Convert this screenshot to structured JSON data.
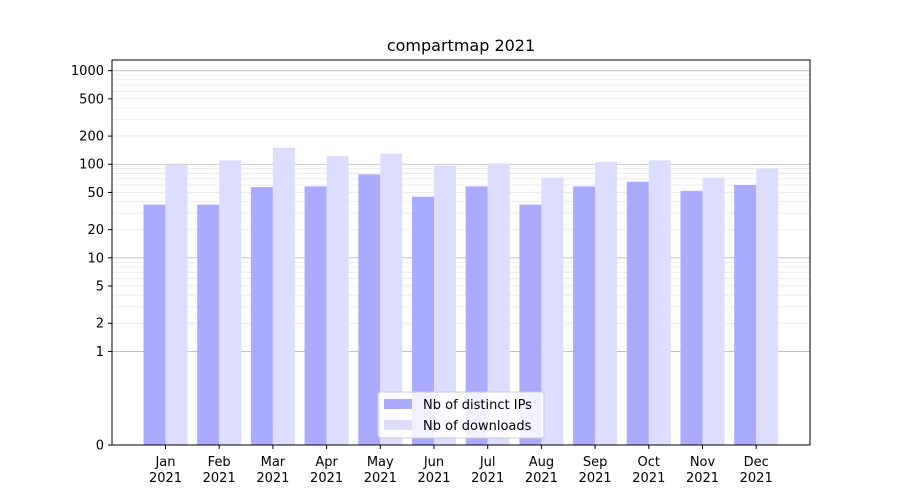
{
  "chart_data": {
    "type": "bar",
    "title": "compartmap 2021",
    "xlabel": "",
    "ylabel": "",
    "y_scale": "symlog",
    "ylim": [
      0,
      1300
    ],
    "y_ticks": [
      0,
      1,
      2,
      5,
      10,
      20,
      50,
      100,
      200,
      500,
      1000
    ],
    "y_tick_labels": [
      "0",
      "1",
      "2",
      "5",
      "10",
      "20",
      "50",
      "100",
      "200",
      "500",
      "1000"
    ],
    "grid": true,
    "legend_position": "bottom-center",
    "categories": [
      [
        "Jan",
        "2021"
      ],
      [
        "Feb",
        "2021"
      ],
      [
        "Mar",
        "2021"
      ],
      [
        "Apr",
        "2021"
      ],
      [
        "May",
        "2021"
      ],
      [
        "Jun",
        "2021"
      ],
      [
        "Jul",
        "2021"
      ],
      [
        "Aug",
        "2021"
      ],
      [
        "Sep",
        "2021"
      ],
      [
        "Oct",
        "2021"
      ],
      [
        "Nov",
        "2021"
      ],
      [
        "Dec",
        "2021"
      ]
    ],
    "series": [
      {
        "name": "Nb of distinct IPs",
        "color": "#aaaaff",
        "values": [
          37,
          37,
          57,
          58,
          78,
          45,
          58,
          37,
          58,
          65,
          52,
          60
        ]
      },
      {
        "name": "Nb of downloads",
        "color": "#ddddff",
        "values": [
          99,
          110,
          150,
          122,
          130,
          97,
          102,
          72,
          106,
          110,
          72,
          90
        ]
      }
    ]
  }
}
